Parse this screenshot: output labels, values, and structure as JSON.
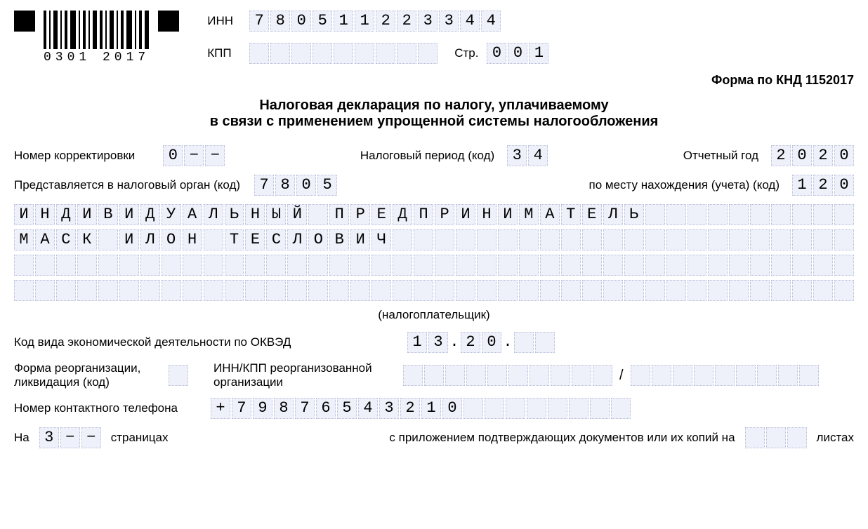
{
  "colors": {
    "cell_bg": "#eef0fa",
    "cell_border": "#b8bed8",
    "text": "#000000",
    "background": "#ffffff"
  },
  "typography": {
    "label_fontsize": 17,
    "cell_fontsize": 22,
    "title_fontsize": 20,
    "mono_family": "Courier New"
  },
  "barcode": {
    "text": "0301 2017"
  },
  "labels": {
    "inn": "ИНН",
    "kpp": "КПП",
    "str": "Стр.",
    "form_knd": "Форма по КНД 1152017",
    "title_line1": "Налоговая декларация по налогу, уплачиваемому",
    "title_line2": "в связи с применением упрощенной системы налогообложения",
    "correction_no": "Номер корректировки",
    "tax_period": "Налоговый период (код)",
    "report_year": "Отчетный год",
    "tax_authority": "Представляется в налоговый орган (код)",
    "location_code": "по месту нахождения (учета) (код)",
    "taxpayer_note": "(налогоплательщик)",
    "okved": "Код вида экономической деятельности по ОКВЭД",
    "reorg_form": "Форма реорганизации,",
    "reorg_form2": "ликвидация (код)",
    "reorg_innkpp1": "ИНН/КПП реорганизованной",
    "reorg_innkpp2": "организации",
    "phone": "Номер контактного телефона",
    "on": "На",
    "pages": "страницах",
    "attachments": "с приложением подтверждающих документов или их копий на",
    "sheets": "листах",
    "slash": "/"
  },
  "fields": {
    "inn": [
      "7",
      "8",
      "0",
      "5",
      "1",
      "1",
      "2",
      "2",
      "3",
      "3",
      "4",
      "4"
    ],
    "kpp": [
      "",
      "",
      "",
      "",
      "",
      "",
      "",
      "",
      ""
    ],
    "page": [
      "0",
      "0",
      "1"
    ],
    "correction_no": [
      "0",
      "−",
      "−"
    ],
    "tax_period": [
      "3",
      "4"
    ],
    "report_year": [
      "2",
      "0",
      "2",
      "0"
    ],
    "tax_authority": [
      "7",
      "8",
      "0",
      "5"
    ],
    "location_code": [
      "1",
      "2",
      "0"
    ],
    "name_line1": [
      "И",
      "Н",
      "Д",
      "И",
      "В",
      "И",
      "Д",
      "У",
      "А",
      "Л",
      "Ь",
      "Н",
      "Ы",
      "Й",
      "",
      "П",
      "Р",
      "Е",
      "Д",
      "П",
      "Р",
      "И",
      "Н",
      "И",
      "М",
      "А",
      "Т",
      "Е",
      "Л",
      "Ь",
      "",
      "",
      "",
      "",
      "",
      "",
      "",
      "",
      "",
      ""
    ],
    "name_line2": [
      "М",
      "А",
      "С",
      "К",
      "",
      "И",
      "Л",
      "О",
      "Н",
      "",
      "Т",
      "Е",
      "С",
      "Л",
      "О",
      "В",
      "И",
      "Ч",
      "",
      "",
      "",
      "",
      "",
      "",
      "",
      "",
      "",
      "",
      "",
      "",
      "",
      "",
      "",
      "",
      "",
      "",
      "",
      "",
      "",
      ""
    ],
    "name_line3": [
      "",
      "",
      "",
      "",
      "",
      "",
      "",
      "",
      "",
      "",
      "",
      "",
      "",
      "",
      "",
      "",
      "",
      "",
      "",
      "",
      "",
      "",
      "",
      "",
      "",
      "",
      "",
      "",
      "",
      "",
      "",
      "",
      "",
      "",
      "",
      "",
      "",
      "",
      "",
      ""
    ],
    "name_line4": [
      "",
      "",
      "",
      "",
      "",
      "",
      "",
      "",
      "",
      "",
      "",
      "",
      "",
      "",
      "",
      "",
      "",
      "",
      "",
      "",
      "",
      "",
      "",
      "",
      "",
      "",
      "",
      "",
      "",
      "",
      "",
      "",
      "",
      "",
      "",
      "",
      "",
      "",
      "",
      ""
    ],
    "okved_a": [
      "1",
      "3"
    ],
    "okved_b": [
      "2",
      "0"
    ],
    "okved_c": [
      "",
      ""
    ],
    "reorg_form_code": [
      ""
    ],
    "reorg_inn": [
      "",
      "",
      "",
      "",
      "",
      "",
      "",
      "",
      "",
      ""
    ],
    "reorg_kpp": [
      "",
      "",
      "",
      "",
      "",
      "",
      "",
      "",
      ""
    ],
    "phone": [
      "+",
      "7",
      "9",
      "8",
      "7",
      "6",
      "5",
      "4",
      "3",
      "2",
      "1",
      "0",
      "",
      "",
      "",
      "",
      "",
      "",
      "",
      ""
    ],
    "pages_count": [
      "3",
      "−",
      "−"
    ],
    "attach_count": [
      "",
      "",
      ""
    ]
  },
  "cell_row_length": 40
}
